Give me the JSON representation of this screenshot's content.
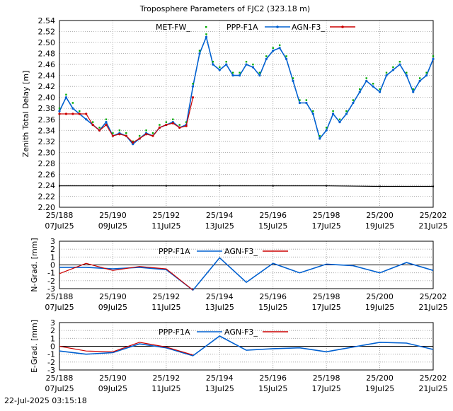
{
  "title": "Troposphere Parameters of FJC2 (323.18 m)",
  "timestamp": "22-Jul-2025 03:15:18",
  "colors": {
    "met": "#00aa00",
    "ppp": "#0060d0",
    "agn": "#cc0000",
    "baseline": "#000000",
    "grid": "#9a9a9a"
  },
  "chart_data": [
    {
      "type": "line",
      "ylabel": "Zenith Total Delay [m]",
      "ylim": [
        2.2,
        2.54
      ],
      "yticks": [
        "2.20",
        "2.22",
        "2.24",
        "2.26",
        "2.28",
        "2.30",
        "2.32",
        "2.34",
        "2.36",
        "2.38",
        "2.40",
        "2.42",
        "2.44",
        "2.46",
        "2.48",
        "2.50",
        "2.52",
        "2.54"
      ],
      "xlim": [
        188,
        202
      ],
      "xticks": [
        {
          "x": 188,
          "top": "25/188",
          "bottom": "07Jul25"
        },
        {
          "x": 190,
          "top": "25/190",
          "bottom": "09Jul25"
        },
        {
          "x": 192,
          "top": "25/192",
          "bottom": "11Jul25"
        },
        {
          "x": 194,
          "top": "25/194",
          "bottom": "13Jul25"
        },
        {
          "x": 196,
          "top": "25/196",
          "bottom": "15Jul25"
        },
        {
          "x": 198,
          "top": "25/198",
          "bottom": "17Jul25"
        },
        {
          "x": 200,
          "top": "25/200",
          "bottom": "19Jul25"
        },
        {
          "x": 202,
          "top": "25/202",
          "bottom": "21Jul25"
        }
      ],
      "legend": [
        "MET-FW_",
        "PPP-F1A",
        "AGN-F3_"
      ],
      "series": [
        {
          "name": "PPP-F1A",
          "x": [
            188.0,
            188.25,
            188.5,
            188.75,
            189.0,
            189.25,
            189.5,
            189.75,
            190.0,
            190.25,
            190.5,
            190.75,
            191.0,
            191.25,
            191.5,
            191.75,
            192.0,
            192.25,
            192.5,
            192.75,
            193.0,
            193.25,
            193.5,
            193.75,
            194.0,
            194.25,
            194.5,
            194.75,
            195.0,
            195.25,
            195.5,
            195.75,
            196.0,
            196.25,
            196.5,
            196.75,
            197.0,
            197.25,
            197.5,
            197.75,
            198.0,
            198.25,
            198.5,
            198.75,
            199.0,
            199.25,
            199.5,
            199.75,
            200.0,
            200.25,
            200.5,
            200.75,
            201.0,
            201.25,
            201.5,
            201.75,
            202.0
          ],
          "y": [
            2.375,
            2.4,
            2.38,
            2.37,
            2.36,
            2.35,
            2.34,
            2.355,
            2.33,
            2.335,
            2.33,
            2.315,
            2.325,
            2.335,
            2.33,
            2.345,
            2.35,
            2.355,
            2.345,
            2.35,
            2.42,
            2.48,
            2.51,
            2.46,
            2.45,
            2.46,
            2.44,
            2.44,
            2.46,
            2.455,
            2.44,
            2.47,
            2.485,
            2.49,
            2.47,
            2.43,
            2.39,
            2.39,
            2.37,
            2.325,
            2.34,
            2.37,
            2.355,
            2.37,
            2.39,
            2.41,
            2.43,
            2.42,
            2.41,
            2.44,
            2.45,
            2.46,
            2.44,
            2.41,
            2.43,
            2.44,
            2.47
          ]
        },
        {
          "name": "MET-FW_",
          "x": [
            188.0,
            188.25,
            188.5,
            188.75,
            189.0,
            189.25,
            189.5,
            189.75,
            190.0,
            190.25,
            190.5,
            190.75,
            191.0,
            191.25,
            191.5,
            191.75,
            192.0,
            192.25,
            192.5,
            192.75,
            193.0,
            193.25,
            193.5,
            193.75,
            194.0,
            194.25,
            194.5,
            194.75,
            195.0,
            195.25,
            195.5,
            195.75,
            196.0,
            196.25,
            196.5,
            196.75,
            197.0,
            197.25,
            197.5,
            197.75,
            198.0,
            198.25,
            198.5,
            198.75,
            199.0,
            199.25,
            199.5,
            199.75,
            200.0,
            200.25,
            200.5,
            200.75,
            201.0,
            201.25,
            201.5,
            201.75,
            202.0
          ],
          "y": [
            2.38,
            2.405,
            2.39,
            2.375,
            2.37,
            2.355,
            2.345,
            2.36,
            2.335,
            2.34,
            2.335,
            2.32,
            2.33,
            2.34,
            2.335,
            2.35,
            2.355,
            2.36,
            2.35,
            2.355,
            2.425,
            2.485,
            2.515,
            2.465,
            2.455,
            2.465,
            2.445,
            2.445,
            2.465,
            2.46,
            2.445,
            2.475,
            2.49,
            2.495,
            2.475,
            2.435,
            2.395,
            2.395,
            2.375,
            2.33,
            2.345,
            2.375,
            2.36,
            2.375,
            2.395,
            2.415,
            2.435,
            2.425,
            2.415,
            2.445,
            2.455,
            2.465,
            2.445,
            2.415,
            2.435,
            2.445,
            2.475
          ]
        },
        {
          "name": "AGN-F3_",
          "x": [
            188.0,
            188.25,
            188.5,
            188.75,
            189.0,
            189.25,
            189.5,
            189.75,
            190.0,
            190.25,
            190.5,
            190.75,
            191.0,
            191.25,
            191.5,
            191.75,
            192.0,
            192.25,
            192.5,
            192.75,
            193.0
          ],
          "y": [
            2.37,
            2.37,
            2.37,
            2.37,
            2.37,
            2.35,
            2.34,
            2.35,
            2.33,
            2.333,
            2.33,
            2.318,
            2.325,
            2.333,
            2.33,
            2.345,
            2.35,
            2.353,
            2.345,
            2.348,
            2.4
          ]
        },
        {
          "name": "",
          "x": [
            188.0,
            190.0,
            192.0,
            194.0,
            196.0,
            198.0,
            200.0,
            202.0
          ],
          "y": [
            2.239,
            2.239,
            2.239,
            2.239,
            2.239,
            2.239,
            2.238,
            2.238
          ]
        }
      ]
    },
    {
      "type": "line",
      "ylabel": "N-Grad. [mm]",
      "ylim": [
        -3,
        3
      ],
      "yticks": [
        "-3",
        "-2",
        "-1",
        "0",
        "1",
        "2",
        "3"
      ],
      "xlim": [
        188,
        202
      ],
      "xticks": [
        {
          "x": 188,
          "top": "25/188",
          "bottom": "07Jul25"
        },
        {
          "x": 190,
          "top": "25/190",
          "bottom": "09Jul25"
        },
        {
          "x": 192,
          "top": "25/192",
          "bottom": "11Jul25"
        },
        {
          "x": 194,
          "top": "25/194",
          "bottom": "13Jul25"
        },
        {
          "x": 196,
          "top": "25/196",
          "bottom": "15Jul25"
        },
        {
          "x": 198,
          "top": "25/198",
          "bottom": "17Jul25"
        },
        {
          "x": 200,
          "top": "25/200",
          "bottom": "19Jul25"
        },
        {
          "x": 202,
          "top": "25/202",
          "bottom": "21Jul25"
        }
      ],
      "legend": [
        "PPP-F1A",
        "AGN-F3_"
      ],
      "series": [
        {
          "name": "PPP-F1A",
          "x": [
            188,
            189,
            190,
            191,
            192,
            193,
            194,
            195,
            196,
            197,
            198,
            199,
            200,
            201,
            202
          ],
          "y": [
            -0.3,
            -0.3,
            -0.5,
            -0.3,
            -0.6,
            -3.2,
            0.9,
            -2.2,
            0.2,
            -1.0,
            0.1,
            -0.1,
            -1.0,
            0.3,
            -0.7
          ]
        },
        {
          "name": "AGN-F3_",
          "x": [
            188,
            189,
            190,
            191,
            192,
            193
          ],
          "y": [
            -1.1,
            0.2,
            -0.7,
            -0.2,
            -0.5,
            -3.2
          ]
        }
      ]
    },
    {
      "type": "line",
      "ylabel": "E-Grad. [mm]",
      "ylim": [
        -3,
        3
      ],
      "yticks": [
        "-3",
        "-2",
        "-1",
        "0",
        "1",
        "2",
        "3"
      ],
      "xlim": [
        188,
        202
      ],
      "xticks": [
        {
          "x": 188,
          "top": "25/188",
          "bottom": "07Jul25"
        },
        {
          "x": 190,
          "top": "25/190",
          "bottom": "09Jul25"
        },
        {
          "x": 192,
          "top": "25/192",
          "bottom": "11Jul25"
        },
        {
          "x": 194,
          "top": "25/194",
          "bottom": "13Jul25"
        },
        {
          "x": 196,
          "top": "25/196",
          "bottom": "15Jul25"
        },
        {
          "x": 198,
          "top": "25/198",
          "bottom": "17Jul25"
        },
        {
          "x": 200,
          "top": "25/200",
          "bottom": "19Jul25"
        },
        {
          "x": 202,
          "top": "25/202",
          "bottom": "21Jul25"
        }
      ],
      "legend": [
        "PPP-F1A",
        "AGN-F3_"
      ],
      "series": [
        {
          "name": "PPP-F1A",
          "x": [
            188,
            189,
            190,
            191,
            192,
            193,
            194,
            195,
            196,
            197,
            198,
            199,
            200,
            201,
            202
          ],
          "y": [
            -0.6,
            -1.0,
            -0.8,
            0.3,
            -0.2,
            -1.2,
            1.3,
            -0.5,
            -0.3,
            -0.2,
            -0.7,
            -0.1,
            0.5,
            0.4,
            -0.4
          ]
        },
        {
          "name": "AGN-F3_",
          "x": [
            188,
            189,
            190,
            191,
            192,
            193
          ],
          "y": [
            0.0,
            -0.6,
            -0.7,
            0.5,
            -0.1,
            -1.1
          ]
        }
      ]
    }
  ]
}
